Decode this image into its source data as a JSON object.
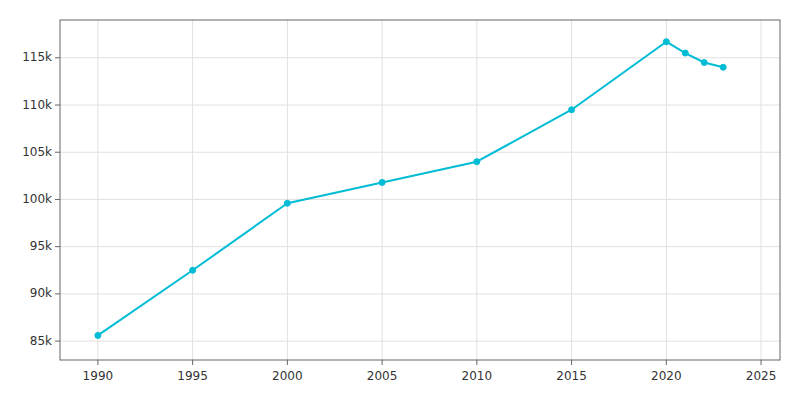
{
  "chart_data": {
    "type": "line",
    "x": [
      1990,
      1995,
      2000,
      2005,
      2010,
      2015,
      2020,
      2021,
      2022,
      2023
    ],
    "values": [
      85600,
      92500,
      99600,
      101800,
      104000,
      109500,
      116700,
      115500,
      114500,
      114000
    ],
    "color": "#00BCD4",
    "marker": "circle",
    "xlim": [
      1988,
      2026
    ],
    "ylim": [
      83000,
      119000
    ],
    "xticks": [
      1990,
      1995,
      2000,
      2005,
      2010,
      2015,
      2020,
      2025
    ],
    "yticks": [
      {
        "value": 85000,
        "label": "85k"
      },
      {
        "value": 90000,
        "label": "90k"
      },
      {
        "value": 95000,
        "label": "95k"
      },
      {
        "value": 100000,
        "label": "100k"
      },
      {
        "value": 105000,
        "label": "105k"
      },
      {
        "value": 110000,
        "label": "110k"
      },
      {
        "value": 115000,
        "label": "115k"
      }
    ],
    "grid": true
  }
}
